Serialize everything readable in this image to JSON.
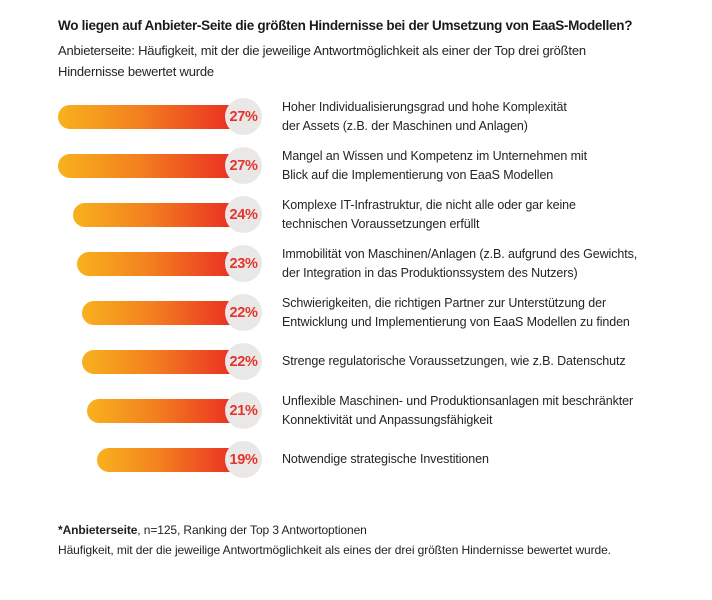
{
  "page": {
    "background": "#ffffff"
  },
  "header": {
    "title": "Wo liegen auf Anbieter-Seite die größten Hindernisse bei der Umsetzung von EaaS-Modellen?",
    "subtitle_lines": [
      "Anbieterseite: Häufigkeit, mit der die jeweilige Antwortmöglichkeit als einer der Top drei größten",
      "Hindernisse bewertet wurde"
    ]
  },
  "chart_data": {
    "type": "bar",
    "orientation": "horizontal",
    "unit": "%",
    "value_range": [
      0,
      27
    ],
    "grid": "off",
    "legend": "none",
    "categories": [
      "Hoher Individualisierungsgrad und hohe Komplexität der Assets (z.B. der Maschinen und Anlagen)",
      "Mangel an Wissen und Kompetenz im Unternehmen mit Blick auf die Implementierung von EaaS Modellen",
      "Komplexe IT-Infrastruktur, die nicht alle oder gar keine technischen Voraussetzungen erfüllt",
      "Immobilität von Maschinen/Anlagen (z.B. aufgrund des Gewichts, der Integration in das Produktionssystem des Nutzers)",
      "Schwierigkeiten, die richtigen Partner zur Unterstützung der Entwicklung und Implementierung von EaaS Modellen zu finden",
      "Strenge regulatorische Voraussetzungen, wie z.B. Datenschutz",
      "Unflexible Maschinen- und Produktionsanlagen mit beschränkter Konnektivität und Anpassungsfähigkeit",
      "Notwendige strategische Investitionen"
    ],
    "values": [
      27,
      27,
      24,
      23,
      22,
      22,
      21,
      19
    ],
    "items": [
      {
        "value": 27,
        "pct_label": "27%",
        "label_lines": [
          "Hoher Individualisierungsgrad und hohe Komplexität",
          "der Assets (z.B. der Maschinen und Anlagen)"
        ]
      },
      {
        "value": 27,
        "pct_label": "27%",
        "label_lines": [
          "Mangel an Wissen und Kompetenz im Unternehmen mit",
          "Blick auf die Implementierung von EaaS Modellen"
        ]
      },
      {
        "value": 24,
        "pct_label": "24%",
        "label_lines": [
          "Komplexe IT-Infrastruktur, die nicht alle oder gar keine",
          "technischen Voraussetzungen erfüllt"
        ]
      },
      {
        "value": 23,
        "pct_label": "23%",
        "label_lines": [
          "Immobilität von Maschinen/Anlagen (z.B. aufgrund des Gewichts,",
          "der Integration in das Produktionssystem des Nutzers)"
        ]
      },
      {
        "value": 22,
        "pct_label": "22%",
        "label_lines": [
          "Schwierigkeiten, die richtigen Partner zur Unterstützung der",
          "Entwicklung und Implementierung von EaaS Modellen zu finden"
        ]
      },
      {
        "value": 22,
        "pct_label": "22%",
        "label_lines": [
          "Strenge regulatorische Voraussetzungen, wie z.B. Datenschutz"
        ]
      },
      {
        "value": 21,
        "pct_label": "21%",
        "label_lines": [
          "Unflexible Maschinen- und Produktionsanlagen mit beschränkter",
          "Konnektivität und Anpassungsfähigkeit"
        ]
      },
      {
        "value": 19,
        "pct_label": "19%",
        "label_lines": [
          "Notwendige strategische Investitionen"
        ]
      }
    ],
    "colors": {
      "bar_gradient_start": "#F8B11E",
      "bar_gradient_mid": "#F3801F",
      "bar_gradient_end": "#EA2B23",
      "badge_bg": "#E9E8E6",
      "badge_text": "#E5332E"
    }
  },
  "footnote": {
    "bold": "*Anbieterseite",
    "rest": ", n=125, Ranking der Top 3 Antwortoptionen",
    "line2": "Häufigkeit, mit der die jeweilige Antwortmöglichkeit als eines der drei größten Hindernisse bewertet wurde."
  }
}
